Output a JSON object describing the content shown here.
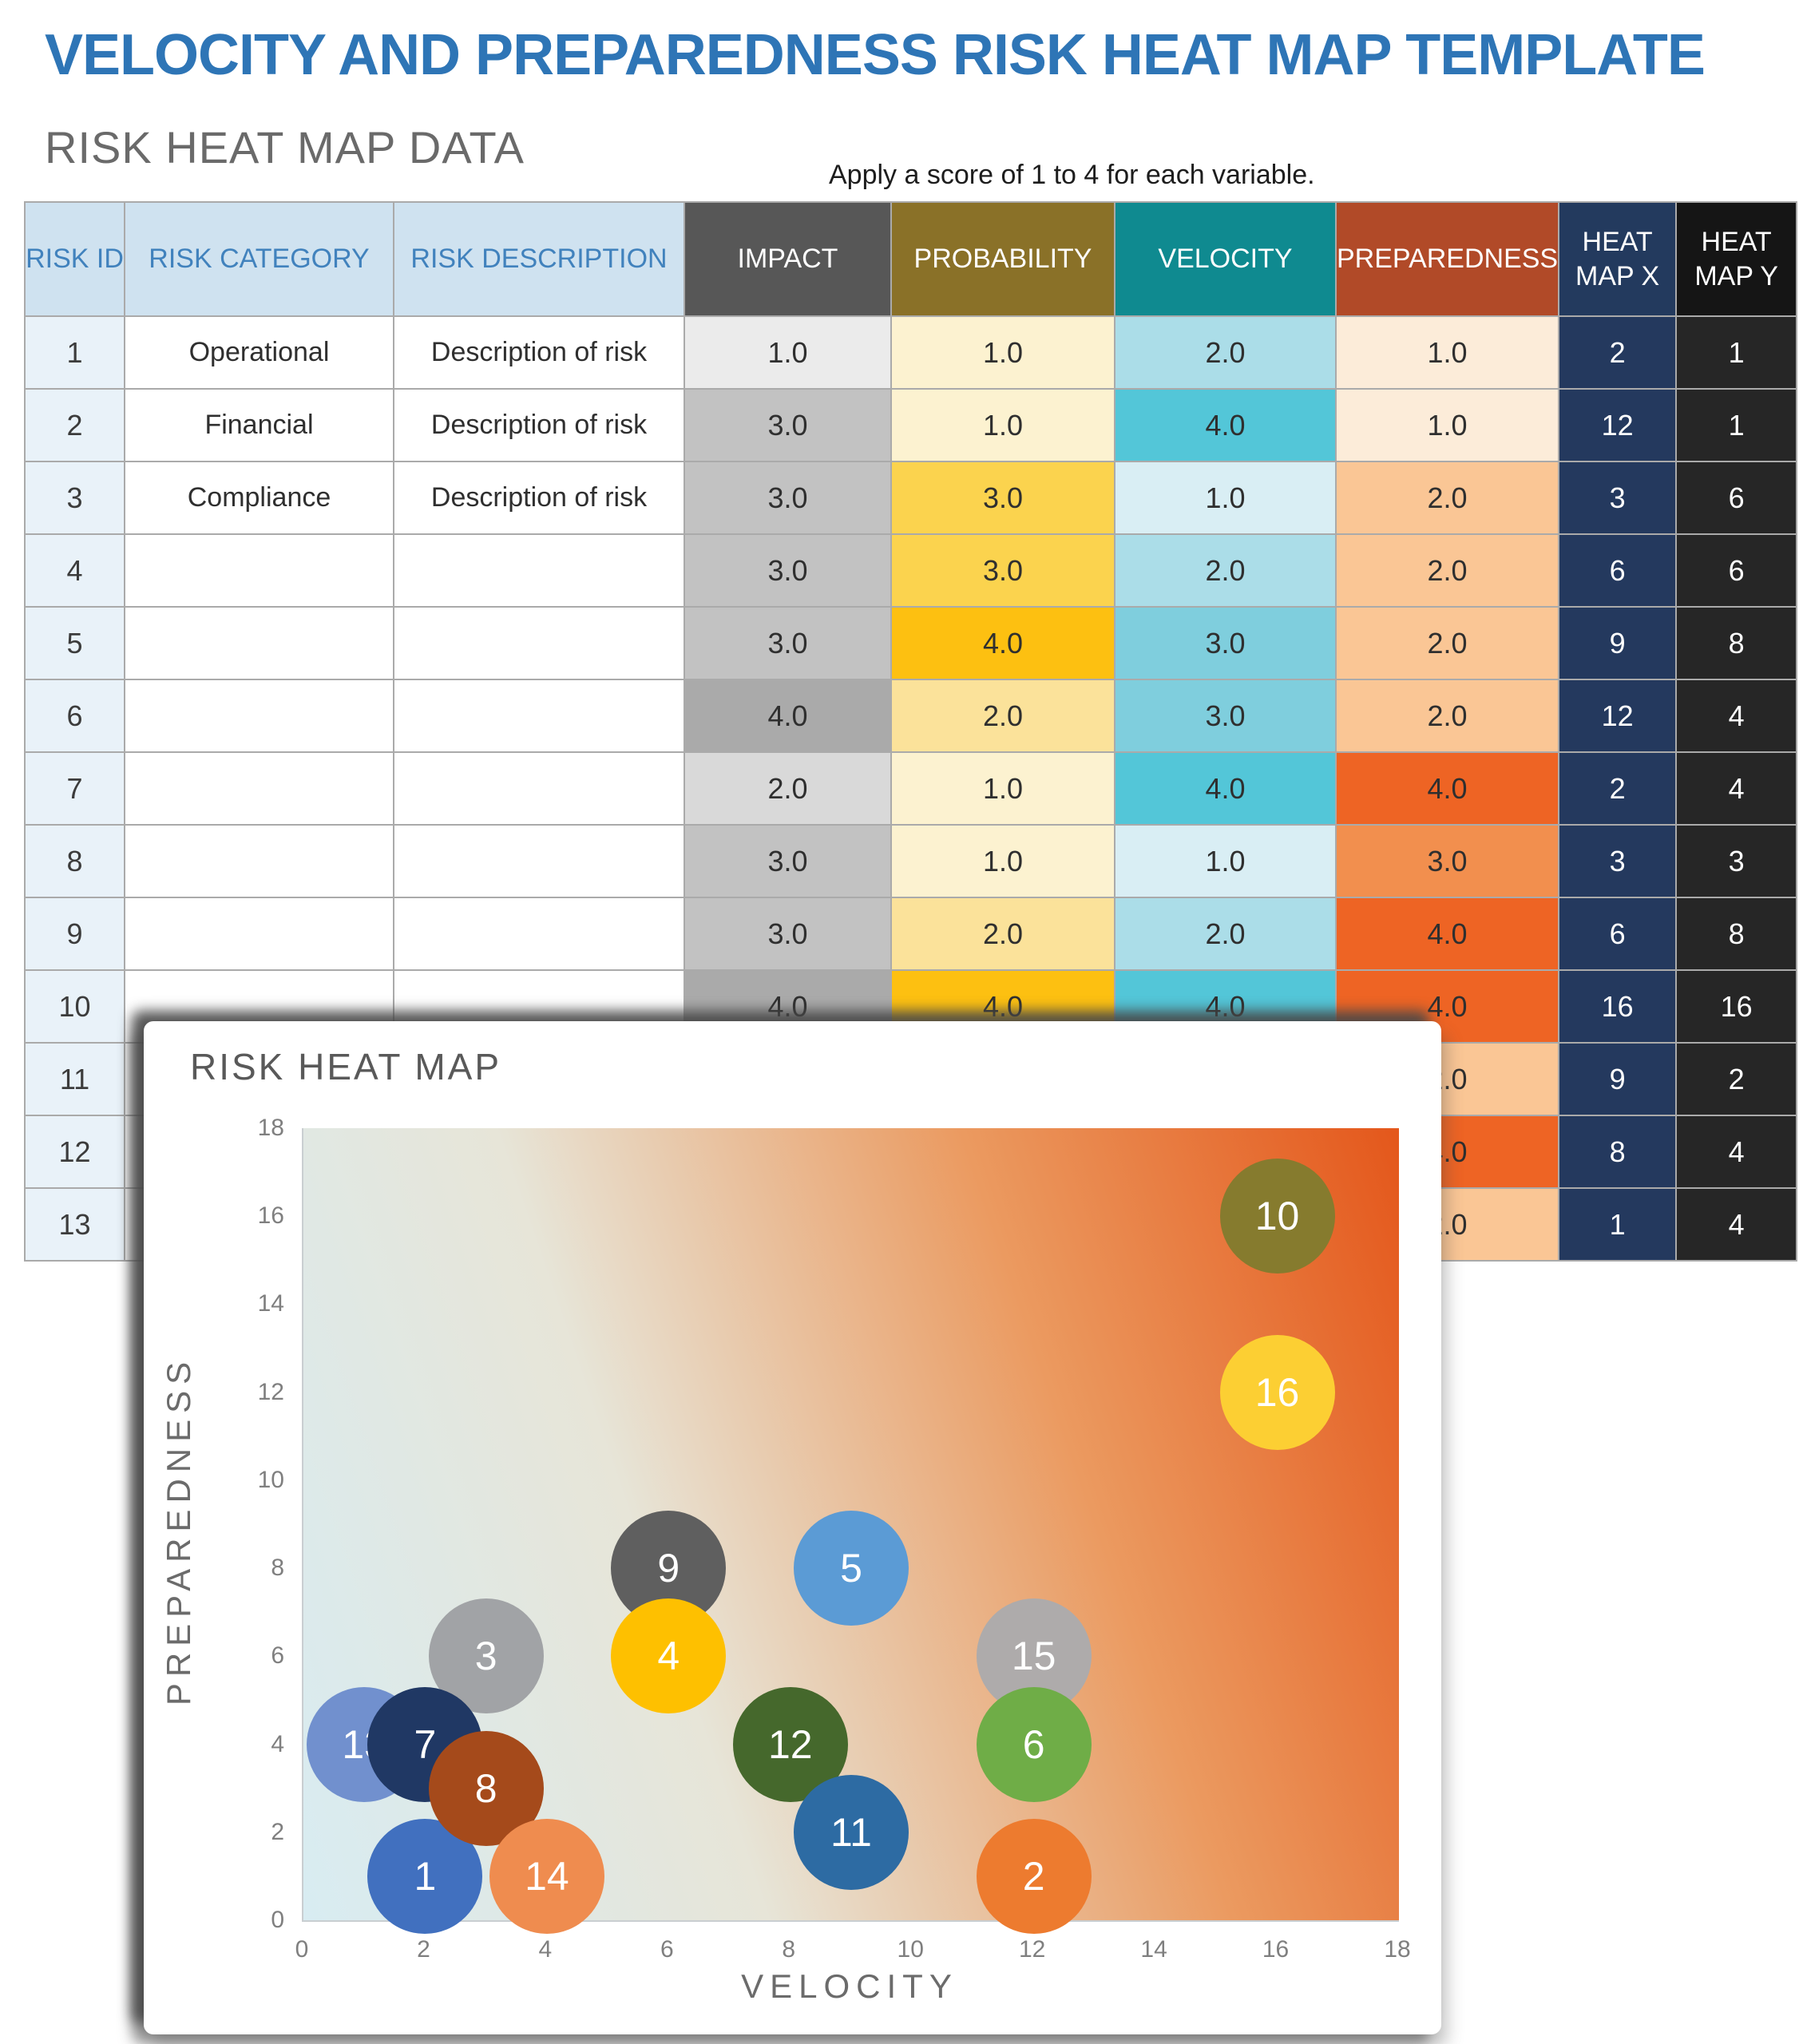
{
  "page": {
    "title": "VELOCITY AND PREPAREDNESS RISK HEAT MAP TEMPLATE",
    "section_title": "RISK HEAT MAP DATA",
    "note": "Apply a score of 1 to 4 for each variable."
  },
  "colors": {
    "title_blue": "#2e75b6",
    "header_plain_bg": "#cfe2f0",
    "header_plain_text": "#4182bd",
    "header_impact": "#575757",
    "header_probability": "#8a7128",
    "header_velocity": "#0f8a90",
    "header_preparedness": "#b14a28",
    "header_heat_x": "#233a5e",
    "header_heat_y": "#151515",
    "heat_x_cell": "#24395e",
    "heat_y_cell": "#262626"
  },
  "table": {
    "columns": [
      "RISK ID",
      "RISK CATEGORY",
      "RISK DESCRIPTION",
      "IMPACT",
      "PROBABILITY",
      "VELOCITY",
      "PREPAREDNESS",
      "HEAT MAP X",
      "HEAT MAP Y"
    ],
    "scales": {
      "impact": {
        "1.0": "#ebebeb",
        "2.0": "#d9d9d9",
        "3.0": "#c2c2c2",
        "4.0": "#aaaaaa"
      },
      "probability": {
        "1.0": "#fcf2d0",
        "2.0": "#fbe29a",
        "3.0": "#fbd34e",
        "4.0": "#fdc011"
      },
      "velocity": {
        "1.0": "#d9eef4",
        "2.0": "#abdde8",
        "3.0": "#7fcedd",
        "4.0": "#53c6d8"
      },
      "preparedness": {
        "1.0": "#fcecd9",
        "2.0": "#fac695",
        "3.0": "#f28f4e",
        "4.0": "#ee6424"
      }
    },
    "rows": [
      {
        "id": "1",
        "category": "Operational",
        "description": "Description of risk",
        "impact": "1.0",
        "probability": "1.0",
        "velocity": "2.0",
        "preparedness": "1.0",
        "heat_x": "2",
        "heat_y": "1"
      },
      {
        "id": "2",
        "category": "Financial",
        "description": "Description of risk",
        "impact": "3.0",
        "probability": "1.0",
        "velocity": "4.0",
        "preparedness": "1.0",
        "heat_x": "12",
        "heat_y": "1"
      },
      {
        "id": "3",
        "category": "Compliance",
        "description": "Description of risk",
        "impact": "3.0",
        "probability": "3.0",
        "velocity": "1.0",
        "preparedness": "2.0",
        "heat_x": "3",
        "heat_y": "6"
      },
      {
        "id": "4",
        "category": "",
        "description": "",
        "impact": "3.0",
        "probability": "3.0",
        "velocity": "2.0",
        "preparedness": "2.0",
        "heat_x": "6",
        "heat_y": "6"
      },
      {
        "id": "5",
        "category": "",
        "description": "",
        "impact": "3.0",
        "probability": "4.0",
        "velocity": "3.0",
        "preparedness": "2.0",
        "heat_x": "9",
        "heat_y": "8"
      },
      {
        "id": "6",
        "category": "",
        "description": "",
        "impact": "4.0",
        "probability": "2.0",
        "velocity": "3.0",
        "preparedness": "2.0",
        "heat_x": "12",
        "heat_y": "4"
      },
      {
        "id": "7",
        "category": "",
        "description": "",
        "impact": "2.0",
        "probability": "1.0",
        "velocity": "4.0",
        "preparedness": "4.0",
        "heat_x": "2",
        "heat_y": "4"
      },
      {
        "id": "8",
        "category": "",
        "description": "",
        "impact": "3.0",
        "probability": "1.0",
        "velocity": "1.0",
        "preparedness": "3.0",
        "heat_x": "3",
        "heat_y": "3"
      },
      {
        "id": "9",
        "category": "",
        "description": "",
        "impact": "3.0",
        "probability": "2.0",
        "velocity": "2.0",
        "preparedness": "4.0",
        "heat_x": "6",
        "heat_y": "8"
      },
      {
        "id": "10",
        "category": "",
        "description": "",
        "impact": "4.0",
        "probability": "4.0",
        "velocity": "4.0",
        "preparedness": "4.0",
        "heat_x": "16",
        "heat_y": "16"
      },
      {
        "id": "11",
        "category": "",
        "description": "",
        "impact": "",
        "probability": "",
        "velocity": "",
        "preparedness": "2.0",
        "heat_x": "9",
        "heat_y": "2"
      },
      {
        "id": "12",
        "category": "",
        "description": "",
        "impact": "",
        "probability": "",
        "velocity": "",
        "preparedness": "4.0",
        "heat_x": "8",
        "heat_y": "4"
      },
      {
        "id": "13",
        "category": "",
        "description": "",
        "impact": "",
        "probability": "",
        "velocity": "",
        "preparedness": "2.0",
        "heat_x": "1",
        "heat_y": "4"
      }
    ]
  },
  "chart": {
    "title": "RISK HEAT MAP",
    "xlabel": "VELOCITY",
    "ylabel": "PREPAREDNESS"
  },
  "chart_data": {
    "type": "bubble",
    "title": "RISK HEAT MAP",
    "xlabel": "VELOCITY",
    "ylabel": "PREPAREDNESS",
    "xlim": [
      0,
      18
    ],
    "ylim": [
      0,
      18
    ],
    "x_ticks": [
      0,
      2,
      4,
      6,
      8,
      10,
      12,
      14,
      16,
      18
    ],
    "y_ticks": [
      0,
      2,
      4,
      6,
      8,
      10,
      12,
      14,
      16,
      18
    ],
    "grid": false,
    "legend": "none",
    "background_gradient": [
      "#d8ecf2",
      "#e7e5d8",
      "#eb9a60",
      "#e4571b"
    ],
    "points": [
      {
        "id": 1,
        "x": 2,
        "y": 1,
        "color": "#4170bf"
      },
      {
        "id": 2,
        "x": 12,
        "y": 1,
        "color": "#ed7b2f"
      },
      {
        "id": 3,
        "x": 3,
        "y": 6,
        "color": "#a1a3a6"
      },
      {
        "id": 4,
        "x": 6,
        "y": 6,
        "color": "#fec000"
      },
      {
        "id": 5,
        "x": 9,
        "y": 8,
        "color": "#5b9bd5"
      },
      {
        "id": 6,
        "x": 12,
        "y": 4,
        "color": "#6fad47"
      },
      {
        "id": 7,
        "x": 2,
        "y": 4,
        "color": "#203864"
      },
      {
        "id": 8,
        "x": 3,
        "y": 3,
        "color": "#a54a1b"
      },
      {
        "id": 9,
        "x": 6,
        "y": 8,
        "color": "#5f5f5f"
      },
      {
        "id": 10,
        "x": 16,
        "y": 16,
        "color": "#867b2e"
      },
      {
        "id": 11,
        "x": 9,
        "y": 2,
        "color": "#2d6ba3"
      },
      {
        "id": 12,
        "x": 8,
        "y": 4,
        "color": "#45682c"
      },
      {
        "id": 13,
        "x": 1,
        "y": 4,
        "color": "#7190ce"
      },
      {
        "id": 14,
        "x": 4,
        "y": 1,
        "color": "#ef8c4f"
      },
      {
        "id": 15,
        "x": 12,
        "y": 6,
        "color": "#aeabab"
      },
      {
        "id": 16,
        "x": 16,
        "y": 12,
        "color": "#fccf33"
      }
    ],
    "draw_order": [
      13,
      9,
      15,
      12,
      5,
      3,
      1,
      7,
      8,
      4,
      6,
      11,
      14,
      2,
      16,
      10
    ]
  }
}
